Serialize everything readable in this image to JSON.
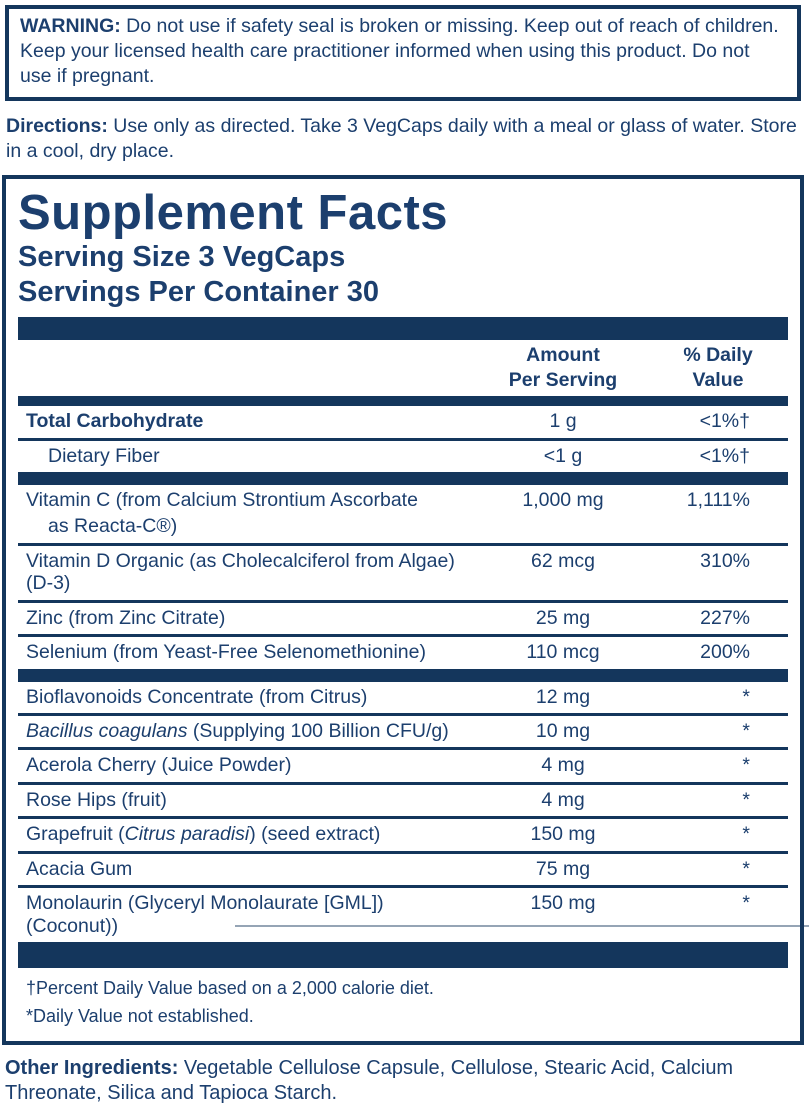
{
  "colors": {
    "navy_bar": "#14365c",
    "navy_text": "#1c3f6e",
    "background": "#ffffff"
  },
  "warning": {
    "label": "WARNING:",
    "text": " Do not use if safety seal is broken or missing. Keep out of reach of children. Keep your licensed health care practitioner informed when using this product. Do not use if pregnant."
  },
  "directions": {
    "label": "Directions:",
    "text": " Use only as directed. Take 3 VegCaps daily with a meal or glass of water. Store in a cool, dry place."
  },
  "supplement_facts": {
    "title": "Supplement Facts",
    "serving_size": "Serving Size 3 VegCaps",
    "servings_per_container": "Servings Per Container 30",
    "columns": {
      "amount_header": "Amount Per Serving",
      "dv_header": "% Daily Value"
    },
    "rows": [
      {
        "name": [
          {
            "text": "Total Carbohydrate"
          }
        ],
        "amount": "1 g",
        "dv": "<1%†",
        "bold": true
      },
      {
        "name": [
          {
            "text": "Dietary Fiber"
          }
        ],
        "amount": "<1 g",
        "dv": "<1%†",
        "indent": true
      },
      {
        "type": "bar"
      },
      {
        "name": [
          {
            "text": "Vitamin C (from Calcium Strontium Ascorbate"
          }
        ],
        "line2": "as Reacta-C®)",
        "amount": "1,000 mg",
        "dv": "1,111%"
      },
      {
        "name": [
          {
            "text": "Vitamin D Organic (as Cholecalciferol from Algae) (D-3)"
          }
        ],
        "amount": "62 mcg",
        "dv": "310%"
      },
      {
        "name": [
          {
            "text": "Zinc (from Zinc Citrate)"
          }
        ],
        "amount": "25 mg",
        "dv": "227%"
      },
      {
        "name": [
          {
            "text": "Selenium (from Yeast-Free Selenomethionine)"
          }
        ],
        "amount": "110 mcg",
        "dv": "200%"
      },
      {
        "type": "bar"
      },
      {
        "name": [
          {
            "text": "Bioflavonoids Concentrate (from Citrus)"
          }
        ],
        "amount": "12 mg",
        "dv": "*"
      },
      {
        "name": [
          {
            "text": "Bacillus coagulans",
            "italic": true
          },
          {
            "text": " (Supplying 100 Billion CFU/g)"
          }
        ],
        "amount": "10 mg",
        "dv": "*"
      },
      {
        "name": [
          {
            "text": "Acerola Cherry (Juice Powder)"
          }
        ],
        "amount": "4 mg",
        "dv": "*"
      },
      {
        "name": [
          {
            "text": "Rose Hips (fruit)"
          }
        ],
        "amount": "4 mg",
        "dv": "*"
      },
      {
        "name": [
          {
            "text": "Grapefruit ("
          },
          {
            "text": "Citrus paradisi",
            "italic": true
          },
          {
            "text": ") (seed extract)"
          }
        ],
        "amount": "150 mg",
        "dv": "*"
      },
      {
        "name": [
          {
            "text": "Acacia Gum"
          }
        ],
        "amount": "75 mg",
        "dv": "*"
      },
      {
        "name": [
          {
            "text": "Monolaurin (Glyceryl Monolaurate [GML]) (Coconut))"
          }
        ],
        "amount": "150 mg",
        "dv": "*"
      }
    ],
    "footnote_dagger": "†Percent Daily Value based on a 2,000 calorie diet.",
    "footnote_asterisk": "*Daily Value not established."
  },
  "other_ingredients": {
    "label": "Other Ingredients:",
    "text": " Vegetable Cellulose Capsule, Cellulose, Stearic Acid, Calcium Threonate, Silica and Tapioca Starch."
  }
}
